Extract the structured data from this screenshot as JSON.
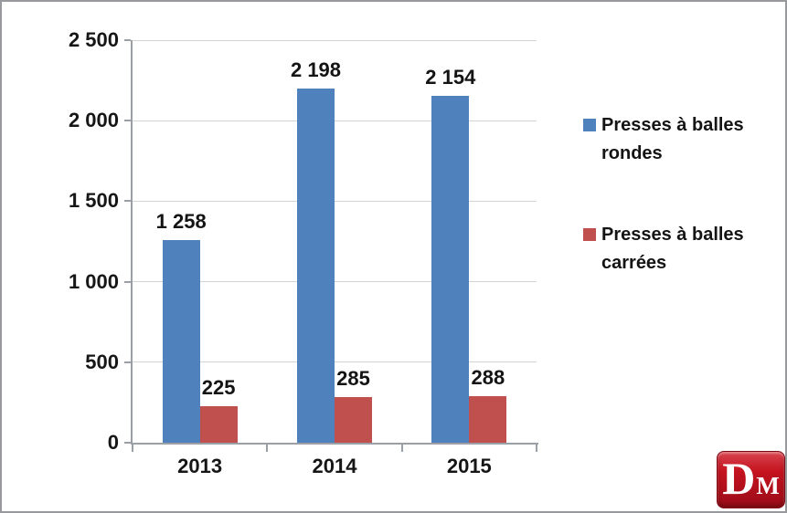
{
  "chart_data": {
    "type": "bar",
    "title": "",
    "categories": [
      "2013",
      "2014",
      "2015"
    ],
    "series": [
      {
        "name": "Presses à balles rondes",
        "color": "#4f81bd",
        "values": [
          1258,
          2198,
          2154
        ],
        "value_labels": [
          "1 258",
          "2 198",
          "2 154"
        ]
      },
      {
        "name": "Presses à balles carrées",
        "color": "#c0504d",
        "values": [
          225,
          285,
          288
        ],
        "value_labels": [
          "225",
          "285",
          "288"
        ]
      }
    ],
    "y_axis": {
      "min": 0,
      "max": 2500,
      "step": 500,
      "tick_labels": [
        "0",
        "500",
        "1 000",
        "1 500",
        "2 000",
        "2 500"
      ]
    },
    "x_axis": {
      "tick_labels": [
        "2013",
        "2014",
        "2015"
      ]
    },
    "grid": true,
    "legend_position": "right"
  },
  "logo": {
    "letter_main": "D",
    "letter_sub": "M",
    "background_color": "#c4131f"
  },
  "colors": {
    "bar_blue": "#4f81bd",
    "bar_red": "#c0504d",
    "gridline": "#d3d3d3",
    "axis": "#9aa0a6",
    "text": "#141414",
    "frame_border": "#97999d"
  }
}
